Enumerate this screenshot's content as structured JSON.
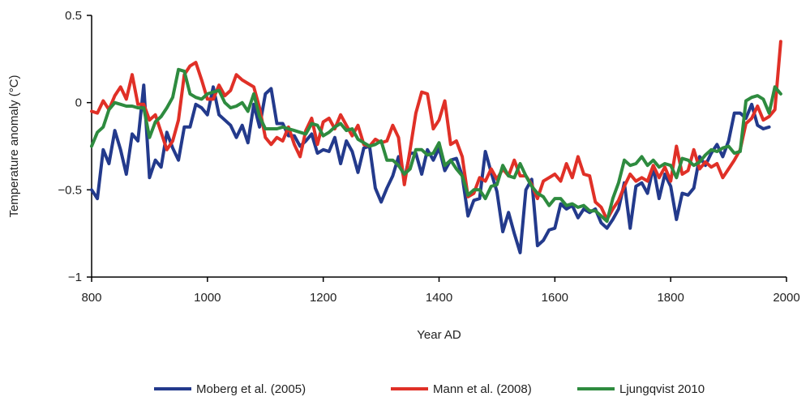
{
  "chart_data": {
    "type": "line",
    "xlabel": "Year AD",
    "ylabel": "Temperature anomaly (°C)",
    "xlim": [
      800,
      2000
    ],
    "ylim": [
      -1,
      0.5
    ],
    "xticks": [
      800,
      1000,
      1200,
      1400,
      1600,
      1800,
      2000
    ],
    "yticks": [
      0.5,
      0,
      -0.5,
      -1
    ],
    "ytick_labels": [
      "0.5",
      "0",
      "−0.5",
      "−1"
    ],
    "grid": false,
    "legend_position": "bottom",
    "series": [
      {
        "name": "Moberg et al. (2005)",
        "color": "#233a8c",
        "x": [
          800,
          810,
          820,
          830,
          840,
          850,
          860,
          870,
          880,
          890,
          900,
          910,
          920,
          930,
          940,
          950,
          960,
          970,
          980,
          990,
          1000,
          1010,
          1020,
          1030,
          1040,
          1050,
          1060,
          1070,
          1080,
          1090,
          1100,
          1110,
          1120,
          1130,
          1140,
          1150,
          1160,
          1170,
          1180,
          1190,
          1200,
          1210,
          1220,
          1230,
          1240,
          1250,
          1260,
          1270,
          1280,
          1290,
          1300,
          1310,
          1320,
          1330,
          1340,
          1350,
          1360,
          1370,
          1380,
          1390,
          1400,
          1410,
          1420,
          1430,
          1440,
          1450,
          1460,
          1470,
          1480,
          1490,
          1500,
          1510,
          1520,
          1530,
          1540,
          1550,
          1560,
          1570,
          1580,
          1590,
          1600,
          1610,
          1620,
          1630,
          1640,
          1650,
          1660,
          1670,
          1680,
          1690,
          1700,
          1710,
          1720,
          1730,
          1740,
          1750,
          1760,
          1770,
          1780,
          1790,
          1800,
          1810,
          1820,
          1830,
          1840,
          1850,
          1860,
          1870,
          1880,
          1890,
          1900,
          1910,
          1920,
          1930,
          1940,
          1950,
          1960,
          1970
        ],
        "y": [
          -0.5,
          -0.55,
          -0.27,
          -0.35,
          -0.16,
          -0.27,
          -0.41,
          -0.18,
          -0.22,
          0.1,
          -0.43,
          -0.33,
          -0.37,
          -0.17,
          -0.26,
          -0.33,
          -0.14,
          -0.14,
          -0.01,
          -0.03,
          -0.07,
          0.09,
          -0.07,
          -0.1,
          -0.13,
          -0.2,
          -0.13,
          -0.23,
          -0.01,
          -0.14,
          0.05,
          0.08,
          -0.12,
          -0.12,
          -0.19,
          -0.19,
          -0.25,
          -0.22,
          -0.18,
          -0.29,
          -0.27,
          -0.28,
          -0.2,
          -0.35,
          -0.22,
          -0.28,
          -0.4,
          -0.26,
          -0.25,
          -0.49,
          -0.57,
          -0.49,
          -0.42,
          -0.31,
          -0.44,
          -0.29,
          -0.29,
          -0.41,
          -0.27,
          -0.33,
          -0.26,
          -0.39,
          -0.33,
          -0.32,
          -0.42,
          -0.65,
          -0.56,
          -0.55,
          -0.28,
          -0.4,
          -0.51,
          -0.74,
          -0.63,
          -0.75,
          -0.86,
          -0.5,
          -0.44,
          -0.82,
          -0.79,
          -0.73,
          -0.72,
          -0.58,
          -0.61,
          -0.59,
          -0.66,
          -0.61,
          -0.63,
          -0.61,
          -0.69,
          -0.72,
          -0.67,
          -0.61,
          -0.46,
          -0.72,
          -0.48,
          -0.46,
          -0.52,
          -0.37,
          -0.55,
          -0.41,
          -0.48,
          -0.67,
          -0.52,
          -0.53,
          -0.49,
          -0.31,
          -0.36,
          -0.29,
          -0.24,
          -0.31,
          -0.22,
          -0.06,
          -0.06,
          -0.09,
          -0.01,
          -0.13,
          -0.15,
          -0.14
        ]
      },
      {
        "name": "Mann et al. (2008)",
        "color": "#e03027",
        "x": [
          800,
          810,
          820,
          830,
          840,
          850,
          860,
          870,
          880,
          890,
          900,
          910,
          920,
          930,
          940,
          950,
          960,
          970,
          980,
          990,
          1000,
          1010,
          1020,
          1030,
          1040,
          1050,
          1060,
          1070,
          1080,
          1090,
          1100,
          1110,
          1120,
          1130,
          1140,
          1150,
          1160,
          1170,
          1180,
          1190,
          1200,
          1210,
          1220,
          1230,
          1240,
          1250,
          1260,
          1270,
          1280,
          1290,
          1300,
          1310,
          1320,
          1330,
          1340,
          1350,
          1360,
          1370,
          1380,
          1390,
          1400,
          1410,
          1420,
          1430,
          1440,
          1450,
          1460,
          1470,
          1480,
          1490,
          1500,
          1510,
          1520,
          1530,
          1540,
          1550,
          1560,
          1570,
          1580,
          1590,
          1600,
          1610,
          1620,
          1630,
          1640,
          1650,
          1660,
          1670,
          1680,
          1690,
          1700,
          1710,
          1720,
          1730,
          1740,
          1750,
          1760,
          1770,
          1780,
          1790,
          1800,
          1810,
          1820,
          1830,
          1840,
          1850,
          1860,
          1870,
          1880,
          1890,
          1900,
          1910,
          1920,
          1930,
          1940,
          1950,
          1960,
          1970,
          1980,
          1990
        ],
        "y": [
          -0.05,
          -0.06,
          0.01,
          -0.04,
          0.04,
          0.09,
          0.02,
          0.16,
          -0.01,
          -0.01,
          -0.1,
          -0.07,
          -0.17,
          -0.27,
          -0.22,
          -0.1,
          0.16,
          0.21,
          0.23,
          0.13,
          0.02,
          0.02,
          0.1,
          0.04,
          0.07,
          0.16,
          0.13,
          0.11,
          0.09,
          -0.03,
          -0.2,
          -0.24,
          -0.2,
          -0.22,
          -0.14,
          -0.24,
          -0.31,
          -0.16,
          -0.09,
          -0.24,
          -0.11,
          -0.09,
          -0.15,
          -0.07,
          -0.13,
          -0.19,
          -0.13,
          -0.24,
          -0.25,
          -0.21,
          -0.23,
          -0.22,
          -0.13,
          -0.2,
          -0.47,
          -0.27,
          -0.06,
          0.06,
          0.05,
          -0.15,
          -0.1,
          0.01,
          -0.24,
          -0.22,
          -0.31,
          -0.54,
          -0.52,
          -0.43,
          -0.45,
          -0.38,
          -0.44,
          -0.38,
          -0.42,
          -0.33,
          -0.42,
          -0.42,
          -0.47,
          -0.55,
          -0.45,
          -0.43,
          -0.41,
          -0.45,
          -0.35,
          -0.43,
          -0.31,
          -0.41,
          -0.42,
          -0.57,
          -0.6,
          -0.67,
          -0.61,
          -0.56,
          -0.48,
          -0.41,
          -0.45,
          -0.43,
          -0.45,
          -0.36,
          -0.43,
          -0.37,
          -0.45,
          -0.25,
          -0.41,
          -0.39,
          -0.27,
          -0.38,
          -0.34,
          -0.37,
          -0.35,
          -0.43,
          -0.38,
          -0.33,
          -0.27,
          -0.12,
          -0.09,
          -0.02,
          -0.1,
          -0.08,
          -0.04,
          0.35
        ]
      },
      {
        "name": "Ljungqvist 2010",
        "color": "#2e8b3f",
        "x": [
          800,
          810,
          820,
          830,
          840,
          850,
          860,
          870,
          880,
          890,
          900,
          910,
          920,
          930,
          940,
          950,
          960,
          970,
          980,
          990,
          1000,
          1010,
          1020,
          1030,
          1040,
          1050,
          1060,
          1070,
          1080,
          1090,
          1100,
          1110,
          1120,
          1130,
          1140,
          1150,
          1160,
          1170,
          1180,
          1190,
          1200,
          1210,
          1220,
          1230,
          1240,
          1250,
          1260,
          1270,
          1280,
          1290,
          1300,
          1310,
          1320,
          1330,
          1340,
          1350,
          1360,
          1370,
          1380,
          1390,
          1400,
          1410,
          1420,
          1430,
          1440,
          1450,
          1460,
          1470,
          1480,
          1490,
          1500,
          1510,
          1520,
          1530,
          1540,
          1550,
          1560,
          1570,
          1580,
          1590,
          1600,
          1610,
          1620,
          1630,
          1640,
          1650,
          1660,
          1670,
          1680,
          1690,
          1700,
          1710,
          1720,
          1730,
          1740,
          1750,
          1760,
          1770,
          1780,
          1790,
          1800,
          1810,
          1820,
          1830,
          1840,
          1850,
          1860,
          1870,
          1880,
          1890,
          1900,
          1910,
          1920,
          1930,
          1940,
          1950,
          1960,
          1970,
          1980,
          1990
        ],
        "y": [
          -0.25,
          -0.17,
          -0.14,
          -0.04,
          0.0,
          -0.01,
          -0.02,
          -0.02,
          -0.03,
          -0.03,
          -0.2,
          -0.11,
          -0.08,
          -0.03,
          0.03,
          0.19,
          0.18,
          0.05,
          0.03,
          0.02,
          0.05,
          0.06,
          0.07,
          0.0,
          -0.03,
          -0.02,
          0.0,
          -0.05,
          0.05,
          -0.08,
          -0.15,
          -0.15,
          -0.15,
          -0.14,
          -0.15,
          -0.16,
          -0.17,
          -0.18,
          -0.12,
          -0.13,
          -0.19,
          -0.17,
          -0.14,
          -0.12,
          -0.16,
          -0.15,
          -0.21,
          -0.23,
          -0.25,
          -0.24,
          -0.22,
          -0.33,
          -0.33,
          -0.36,
          -0.41,
          -0.38,
          -0.27,
          -0.27,
          -0.3,
          -0.29,
          -0.23,
          -0.36,
          -0.33,
          -0.38,
          -0.42,
          -0.53,
          -0.5,
          -0.5,
          -0.55,
          -0.48,
          -0.47,
          -0.36,
          -0.42,
          -0.43,
          -0.35,
          -0.42,
          -0.48,
          -0.52,
          -0.54,
          -0.59,
          -0.55,
          -0.55,
          -0.59,
          -0.58,
          -0.6,
          -0.59,
          -0.62,
          -0.62,
          -0.65,
          -0.68,
          -0.55,
          -0.46,
          -0.33,
          -0.36,
          -0.35,
          -0.31,
          -0.36,
          -0.33,
          -0.37,
          -0.35,
          -0.36,
          -0.43,
          -0.32,
          -0.33,
          -0.36,
          -0.34,
          -0.3,
          -0.27,
          -0.28,
          -0.26,
          -0.25,
          -0.29,
          -0.28,
          0.01,
          0.03,
          0.04,
          0.02,
          -0.06,
          0.09,
          0.05
        ]
      }
    ]
  }
}
